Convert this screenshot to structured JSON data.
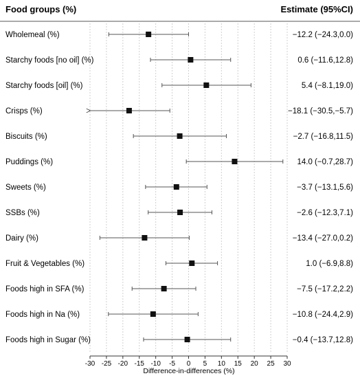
{
  "chart_data": {
    "type": "forest",
    "header_left": "Food groups (%)",
    "header_right": "Estimate (95%CI)",
    "xlabel": "Difference-in-differences (%)",
    "xlim": [
      -30,
      30
    ],
    "xticks": [
      "-30",
      "-25",
      "-20",
      "-15",
      "-10",
      "-5",
      "0",
      "5",
      "10",
      "15",
      "20",
      "25",
      "30"
    ],
    "grid": "vertical dotted",
    "rows": [
      {
        "label": "Wholemeal (%)",
        "estimate": -12.2,
        "lower": -24.3,
        "upper": 0.0,
        "text": "−12.2 (−24.3,0.0)"
      },
      {
        "label": "Starchy foods [no oil] (%)",
        "estimate": 0.6,
        "lower": -11.6,
        "upper": 12.8,
        "text": "0.6 (−11.6,12.8)"
      },
      {
        "label": "Starchy foods [oil] (%)",
        "estimate": 5.4,
        "lower": -8.1,
        "upper": 19.0,
        "text": "5.4 (−8.1,19.0)"
      },
      {
        "label": "Crisps (%)",
        "estimate": -18.1,
        "lower": -30.5,
        "upper": -5.7,
        "text": "−18.1 (−30.5,−5.7)"
      },
      {
        "label": "Biscuits (%)",
        "estimate": -2.7,
        "lower": -16.8,
        "upper": 11.5,
        "text": "−2.7 (−16.8,11.5)"
      },
      {
        "label": "Puddings (%)",
        "estimate": 14.0,
        "lower": -0.7,
        "upper": 28.7,
        "text": "14.0 (−0.7,28.7)"
      },
      {
        "label": "Sweets (%)",
        "estimate": -3.7,
        "lower": -13.1,
        "upper": 5.6,
        "text": "−3.7 (−13.1,5.6)"
      },
      {
        "label": "SSBs (%)",
        "estimate": -2.6,
        "lower": -12.3,
        "upper": 7.1,
        "text": "−2.6 (−12.3,7.1)"
      },
      {
        "label": "Dairy (%)",
        "estimate": -13.4,
        "lower": -27.0,
        "upper": 0.2,
        "text": "−13.4 (−27.0,0.2)"
      },
      {
        "label": "Fruit & Vegetables (%)",
        "estimate": 1.0,
        "lower": -6.9,
        "upper": 8.8,
        "text": "1.0 (−6.9,8.8)"
      },
      {
        "label": "Foods high in SFA (%)",
        "estimate": -7.5,
        "lower": -17.2,
        "upper": 2.2,
        "text": "−7.5 (−17.2,2.2)"
      },
      {
        "label": "Foods high in Na (%)",
        "estimate": -10.8,
        "lower": -24.4,
        "upper": 2.9,
        "text": "−10.8 (−24.4,2.9)"
      },
      {
        "label": "Foods high in Sugar (%)",
        "estimate": -0.4,
        "lower": -13.7,
        "upper": 12.8,
        "text": "−0.4 (−13.7,12.8)"
      }
    ]
  }
}
